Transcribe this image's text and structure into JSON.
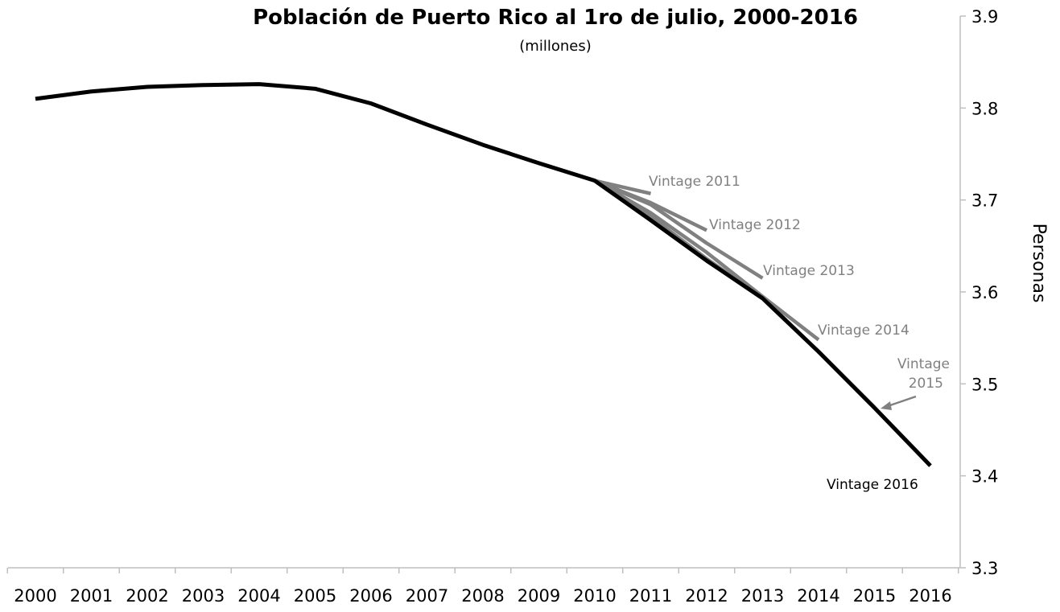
{
  "chart_data": {
    "type": "line",
    "title": "Población de Puerto Rico al 1ro de julio, 2000-2016",
    "subtitle": "(millones)",
    "xlabel": "",
    "ylabel": "Personas",
    "x": [
      2000,
      2001,
      2002,
      2003,
      2004,
      2005,
      2006,
      2007,
      2008,
      2009,
      2010,
      2011,
      2012,
      2013,
      2014,
      2015,
      2016
    ],
    "ylim": [
      3.3,
      3.9
    ],
    "yticks": [
      "3.3",
      "3.4",
      "3.5",
      "3.6",
      "3.7",
      "3.8",
      "3.9"
    ],
    "y_axis_position": "right",
    "grid": false,
    "legend": "none",
    "colors": {
      "main": "#000000",
      "vintage": "#808080"
    },
    "series": [
      {
        "name": "Vintage 2011",
        "x": [
          2010,
          2011
        ],
        "values": [
          3.721,
          3.707
        ]
      },
      {
        "name": "Vintage 2012",
        "x": [
          2010,
          2011,
          2012
        ],
        "values": [
          3.721,
          3.697,
          3.667
        ]
      },
      {
        "name": "Vintage 2013",
        "x": [
          2010,
          2011,
          2012,
          2013
        ],
        "values": [
          3.721,
          3.695,
          3.653,
          3.615
        ]
      },
      {
        "name": "Vintage 2014",
        "x": [
          2010,
          2011,
          2012,
          2013,
          2014
        ],
        "values": [
          3.721,
          3.686,
          3.643,
          3.595,
          3.548
        ]
      },
      {
        "name": "Vintage 2015",
        "x": [
          2010,
          2011,
          2012,
          2013,
          2014,
          2015
        ],
        "values": [
          3.721,
          3.682,
          3.636,
          3.594,
          3.535,
          3.474
        ]
      },
      {
        "name": "Vintage 2016",
        "x": [
          2000,
          2001,
          2002,
          2003,
          2004,
          2005,
          2006,
          2007,
          2008,
          2009,
          2010,
          2011,
          2012,
          2013,
          2014,
          2015,
          2016
        ],
        "values": [
          3.81,
          3.818,
          3.823,
          3.825,
          3.826,
          3.821,
          3.805,
          3.782,
          3.76,
          3.74,
          3.721,
          3.678,
          3.634,
          3.593,
          3.535,
          3.474,
          3.411
        ]
      }
    ]
  }
}
